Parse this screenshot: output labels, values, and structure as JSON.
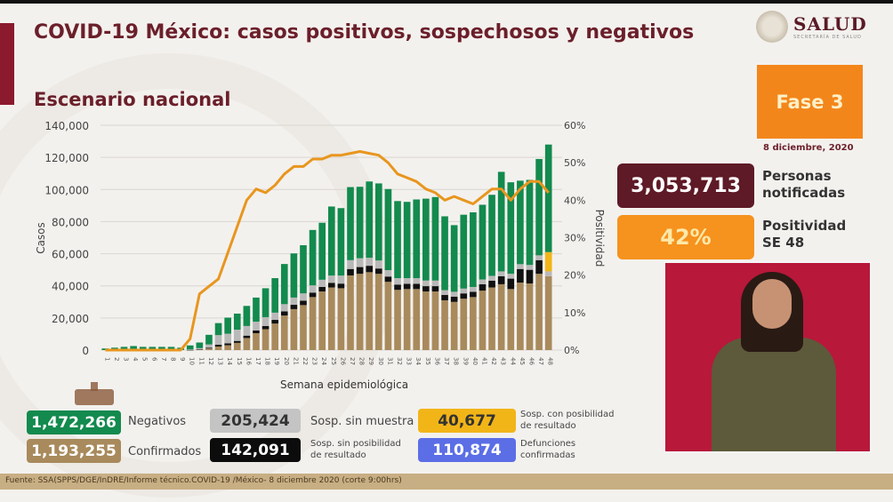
{
  "header": {
    "title": "COVID-19 México: casos positivos, sospechosos y negativos",
    "subtitle": "Escenario nacional",
    "logo": {
      "name": "SALUD",
      "sub": "SECRETARÍA DE SALUD",
      "icon": "seal-icon"
    }
  },
  "status": {
    "phase": "Fase 3",
    "date": "8 diciembre, 2020",
    "notified": {
      "value": "3,053,713",
      "label_line1": "Personas",
      "label_line2": "notificadas"
    },
    "positivity": {
      "value": "42%",
      "label_line1": "Positividad",
      "label_line2": "SE 48"
    }
  },
  "colors": {
    "confirmados": "#a88a5c",
    "sin_posibilidad": "#111111",
    "sin_muestra": "#b9b9b9",
    "con_posibilidad": "#f2b518",
    "negativos": "#138a4e",
    "positividad": "#e8961e",
    "defunciones": "#5b6ee6",
    "title": "#6b1f2a"
  },
  "legend": [
    {
      "value": "1,472,266",
      "label": "Negativos",
      "color": "#138a4e",
      "text_color": "#ffffff"
    },
    {
      "value": "205,424",
      "label": "Sosp. sin muestra",
      "color": "#c4c4c4",
      "text_color": "#333333"
    },
    {
      "value": "40,677",
      "label_line1": "Sosp. con posibilidad",
      "label_line2": "de resultado",
      "color": "#f2b518",
      "text_color": "#333333"
    },
    {
      "value": "1,193,255",
      "label": "Confirmados",
      "color": "#a88a5c",
      "text_color": "#ffffff"
    },
    {
      "value": "142,091",
      "label_line1": "Sosp. sin posibilidad",
      "label_line2": "de resultado",
      "color": "#0c0c0c",
      "text_color": "#ffffff"
    },
    {
      "value": "110,874",
      "label_line1": "Defunciones",
      "label_line2": "confirmadas",
      "color": "#5b6ee6",
      "text_color": "#ffffff"
    }
  ],
  "footer": {
    "source": "Fuente: SSA(SPPS/DGE/InDRE/Informe técnico.COVID-19 /México- 8 diciembre 2020 (corte 9:00hrs)"
  },
  "chart_data": {
    "type": "bar",
    "stacked": true,
    "title": "Escenario nacional",
    "xlabel": "Semana epidemiológica",
    "ylabel": "Casos",
    "y2label": "Positividad",
    "ylim": [
      0,
      140000
    ],
    "y2lim": [
      0,
      60
    ],
    "yticks": [
      "0",
      "20,000",
      "40,000",
      "60,000",
      "80,000",
      "100,000",
      "120,000",
      "140,000"
    ],
    "y2ticks": [
      "0%",
      "10%",
      "20%",
      "30%",
      "40%",
      "50%",
      "60%"
    ],
    "grid": true,
    "categories": [
      "1",
      "2",
      "3",
      "4",
      "5",
      "6",
      "7",
      "8",
      "9",
      "10",
      "11",
      "12",
      "13",
      "14",
      "15",
      "16",
      "17",
      "18",
      "19",
      "20",
      "21",
      "22",
      "23",
      "24",
      "25",
      "26",
      "27",
      "28",
      "29",
      "30",
      "31",
      "32",
      "33",
      "34",
      "35",
      "36",
      "37",
      "38",
      "39",
      "40",
      "41",
      "42",
      "43",
      "44",
      "45",
      "46",
      "47",
      "48"
    ],
    "series": [
      {
        "name": "Confirmados",
        "color": "#a88a5c",
        "values": [
          0,
          0,
          0,
          0,
          0,
          0,
          0,
          0,
          0,
          50,
          300,
          1000,
          2200,
          3000,
          4500,
          7500,
          10500,
          13000,
          16500,
          21500,
          25500,
          28000,
          33000,
          36500,
          39000,
          38500,
          46500,
          47500,
          48500,
          47500,
          42500,
          37500,
          38000,
          38000,
          36500,
          36500,
          31000,
          30000,
          32000,
          33000,
          37000,
          39000,
          41000,
          38000,
          42000,
          41500,
          47500,
          46000
        ]
      },
      {
        "name": "Sosp. sin posibilidad de resultado",
        "color": "#111111",
        "values": [
          0,
          0,
          0,
          0,
          0,
          0,
          0,
          0,
          0,
          50,
          200,
          500,
          1100,
          1200,
          1200,
          1500,
          1700,
          2000,
          2300,
          2600,
          2700,
          2800,
          2800,
          2800,
          2900,
          2900,
          4000,
          4200,
          4000,
          3300,
          3300,
          3300,
          3300,
          3300,
          3300,
          3300,
          3300,
          3300,
          3300,
          3300,
          4000,
          4200,
          5000,
          6500,
          8500,
          8500,
          8500,
          0
        ]
      },
      {
        "name": "Sosp. sin muestra",
        "color": "#b9b9b9",
        "values": [
          0,
          0,
          0,
          0,
          0,
          0,
          0,
          0,
          0,
          300,
          700,
          2000,
          6000,
          6000,
          7000,
          6000,
          5500,
          5500,
          4500,
          4500,
          4500,
          4500,
          4500,
          4500,
          4500,
          5000,
          5500,
          5500,
          5000,
          5000,
          4000,
          4000,
          3500,
          3500,
          3500,
          3500,
          3000,
          3000,
          3000,
          3000,
          3000,
          3000,
          3000,
          3000,
          3000,
          3000,
          3000,
          3000
        ]
      },
      {
        "name": "Sosp. con posibilidad de resultado",
        "color": "#f2b518",
        "values": [
          0,
          0,
          0,
          0,
          0,
          0,
          0,
          0,
          0,
          0,
          0,
          0,
          0,
          0,
          0,
          0,
          0,
          0,
          0,
          0,
          0,
          0,
          0,
          0,
          0,
          0,
          0,
          0,
          0,
          0,
          0,
          0,
          0,
          0,
          0,
          0,
          0,
          0,
          0,
          0,
          0,
          0,
          0,
          0,
          0,
          0,
          0,
          12000
        ]
      },
      {
        "name": "Negativos",
        "color": "#138a4e",
        "values": [
          1000,
          1500,
          2000,
          2500,
          2000,
          2000,
          2000,
          2000,
          1500,
          2500,
          3500,
          6000,
          7500,
          10000,
          10000,
          12500,
          15000,
          18000,
          21500,
          25000,
          27500,
          30000,
          34500,
          35500,
          43000,
          42000,
          45500,
          44500,
          47500,
          48000,
          50500,
          48000,
          47500,
          49000,
          51000,
          52000,
          46000,
          41500,
          46000,
          46500,
          46500,
          50500,
          62000,
          57000,
          52000,
          53000,
          60000,
          67000
        ]
      },
      {
        "name": "Positividad",
        "type": "line",
        "axis": "y2",
        "color": "#e8961e",
        "values": [
          0,
          0,
          0,
          0,
          0,
          0,
          0,
          0,
          0,
          3,
          15,
          17,
          19,
          26,
          33,
          40,
          43,
          42,
          44,
          47,
          49,
          49,
          51,
          51,
          52,
          52,
          52.5,
          53,
          52.5,
          52,
          50,
          47,
          46,
          45,
          43,
          42,
          40,
          41,
          40,
          39,
          41,
          43,
          43,
          40,
          43,
          45,
          45,
          42
        ]
      }
    ]
  }
}
